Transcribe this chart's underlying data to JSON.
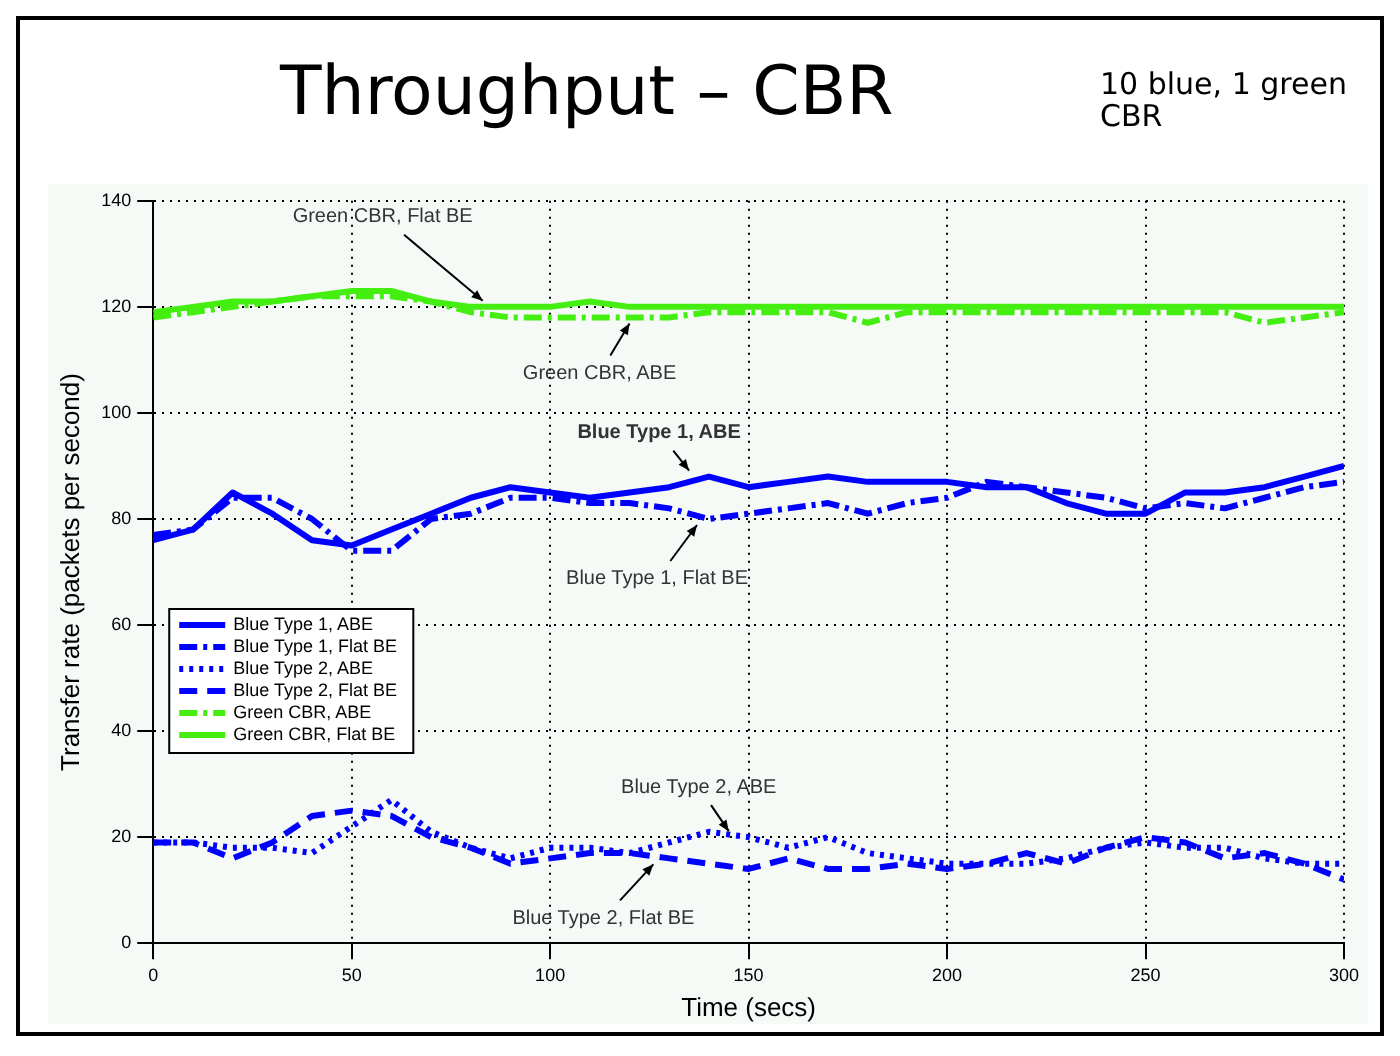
{
  "chart_data": {
    "type": "line",
    "title": "Throughput – CBR",
    "subtitle": "10 blue, 1 green CBR",
    "xlabel": "Time (secs)",
    "ylabel": "Transfer rate (packets per second)",
    "x": [
      0,
      10,
      20,
      30,
      40,
      50,
      60,
      70,
      80,
      90,
      100,
      110,
      120,
      130,
      140,
      150,
      160,
      170,
      180,
      190,
      200,
      210,
      220,
      230,
      240,
      250,
      260,
      270,
      280,
      290,
      300
    ],
    "series": [
      {
        "name": "Blue Type 1, ABE",
        "color": "#0000ff",
        "line_style": "solid",
        "values": [
          76,
          78,
          85,
          81,
          76,
          75,
          78,
          81,
          84,
          86,
          85,
          84,
          85,
          86,
          88,
          86,
          87,
          88,
          87,
          87,
          87,
          86,
          86,
          83,
          81,
          81,
          85,
          85,
          86,
          88,
          90
        ]
      },
      {
        "name": "Blue Type 1, Flat BE",
        "color": "#0000ff",
        "line_style": "dashdot",
        "values": [
          77,
          78,
          84,
          84,
          80,
          74,
          74,
          80,
          81,
          84,
          84,
          83,
          83,
          82,
          80,
          81,
          82,
          83,
          81,
          83,
          84,
          87,
          86,
          85,
          84,
          82,
          83,
          82,
          84,
          86,
          87
        ]
      },
      {
        "name": "Blue Type 2, ABE",
        "color": "#0000ff",
        "line_style": "dotted",
        "values": [
          19,
          19,
          18,
          18,
          17,
          22,
          27,
          21,
          18,
          16,
          18,
          18,
          17,
          19,
          21,
          20,
          18,
          20,
          17,
          16,
          15,
          15,
          15,
          16,
          18,
          19,
          18,
          18,
          16,
          15,
          15
        ]
      },
      {
        "name": "Blue Type 2, Flat BE",
        "color": "#0000ff",
        "line_style": "dashed",
        "values": [
          19,
          19,
          16,
          19,
          24,
          25,
          24,
          20,
          18,
          15,
          16,
          17,
          17,
          16,
          15,
          14,
          16,
          14,
          14,
          15,
          14,
          15,
          17,
          15,
          18,
          20,
          19,
          16,
          17,
          15,
          12
        ]
      },
      {
        "name": "Green CBR, ABE",
        "color": "#44ee11",
        "line_style": "dashdot",
        "values": [
          118,
          119,
          120,
          121,
          122,
          122,
          122,
          121,
          119,
          118,
          118,
          118,
          118,
          118,
          119,
          119,
          119,
          119,
          117,
          119,
          119,
          119,
          119,
          119,
          119,
          119,
          119,
          119,
          117,
          118,
          119
        ]
      },
      {
        "name": "Green CBR, Flat BE",
        "color": "#44ee11",
        "line_style": "solid",
        "values": [
          119,
          120,
          121,
          121,
          122,
          123,
          123,
          121,
          120,
          120,
          120,
          121,
          120,
          120,
          120,
          120,
          120,
          120,
          120,
          120,
          120,
          120,
          120,
          120,
          120,
          120,
          120,
          120,
          120,
          120,
          120
        ]
      }
    ],
    "annotations": [
      {
        "text": "Green CBR, Flat BE",
        "x": 83,
        "y": 120
      },
      {
        "text": "Green CBR, ABE",
        "x": 120,
        "y": 118
      },
      {
        "text": "Blue Type 1, ABE",
        "x": 135,
        "y": 88
      },
      {
        "text": "Blue Type 1, Flat BE",
        "x": 137,
        "y": 80
      },
      {
        "text": "Blue Type 2, ABE",
        "x": 145,
        "y": 20
      },
      {
        "text": "Blue Type 2, Flat BE",
        "x": 126,
        "y": 16
      }
    ],
    "xlim": [
      0,
      300
    ],
    "xticks": [
      0,
      50,
      100,
      150,
      200,
      250,
      300
    ],
    "ylim": [
      0,
      140
    ],
    "yticks": [
      0,
      20,
      40,
      60,
      80,
      100,
      120,
      140
    ],
    "grid": true,
    "legend": "left",
    "marker": "none"
  }
}
